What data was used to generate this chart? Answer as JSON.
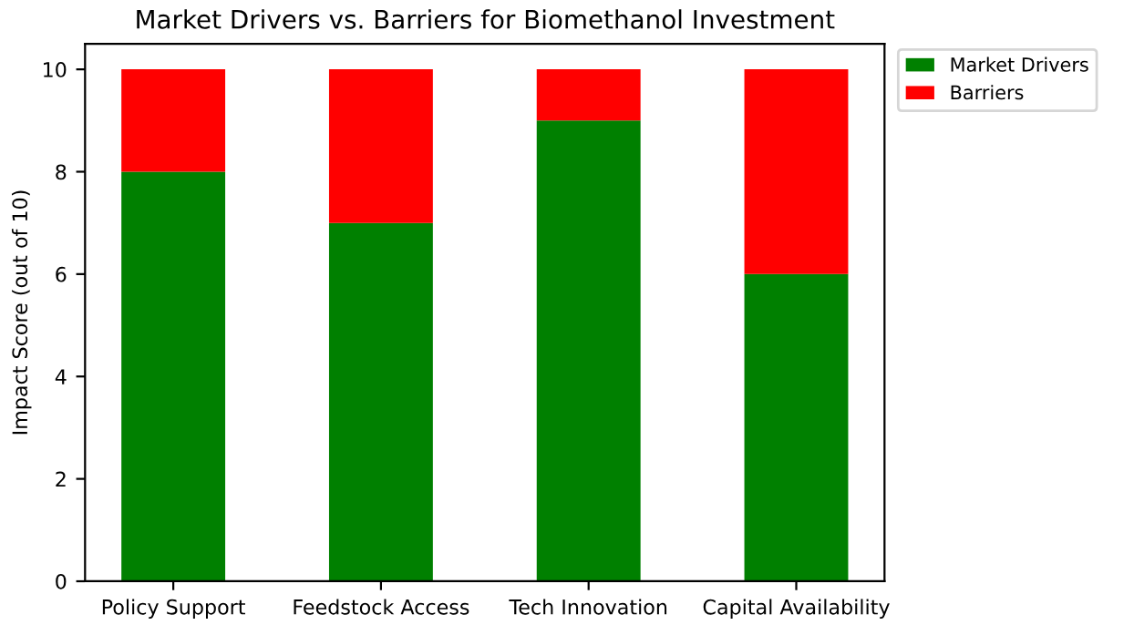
{
  "chart_data": {
    "type": "bar",
    "title": "Market Drivers vs. Barriers for Biomethanol Investment",
    "ylabel": "Impact Score (out of 10)",
    "categories": [
      "Policy Support",
      "Feedstock Access",
      "Tech Innovation",
      "Capital Availability"
    ],
    "series": [
      {
        "name": "Market Drivers",
        "color": "#008000",
        "values": [
          8,
          7,
          9,
          6
        ]
      },
      {
        "name": "Barriers",
        "color": "#ff0000",
        "values": [
          2,
          3,
          1,
          4
        ]
      }
    ],
    "stacked": true,
    "ylim": [
      0,
      10.5
    ],
    "yticks": [
      0,
      2,
      4,
      6,
      8,
      10
    ],
    "grid": false,
    "legend": "top right"
  }
}
